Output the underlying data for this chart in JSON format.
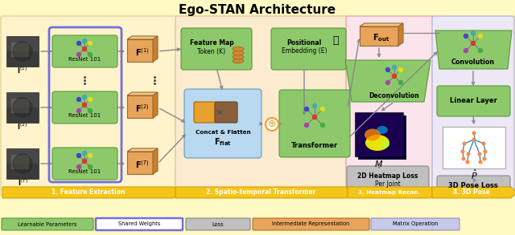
{
  "title": "Ego-STAN Architecture",
  "title_fontsize": 11,
  "title_fontweight": "bold",
  "outer_bg": "#FFF9C4",
  "sec_bg": {
    "feat": "#FFF3CC",
    "spatio": "#FDEBD0",
    "heat": "#FCE4EC",
    "pose": "#EDE7F6"
  },
  "green": "#8DC96B",
  "orange": "#E8A45A",
  "blue_box": "#B8D9F0",
  "gray_loss": "#C0C0C0",
  "lavender": "#C8C8E8",
  "yellow_banner": "#F5C518",
  "shared_border": "#7070DD",
  "arrow_col": "#888888",
  "sections": [
    "1. Feature Extraction",
    "2. Spatio-temporal Transformer",
    "3. Heatmap Recon.",
    "4. 3D Pose"
  ],
  "img_labels": [
    "I$^{(1)}$",
    "I$^{(2)}$",
    "I$^{(T)}$"
  ],
  "F_labels": [
    "F$^{(1)}$",
    "F$^{(2)}$",
    "F$^{(T)}$"
  ],
  "legend": [
    {
      "label": "Learnable Parameters",
      "fc": "#8DC96B",
      "ec": "#5A9A3A",
      "lw": 0.8
    },
    {
      "label": "Shared Weights",
      "fc": "#FFFFFF",
      "ec": "#7070DD",
      "lw": 1.8
    },
    {
      "label": "Loss",
      "fc": "#C0C0C0",
      "ec": "#888888",
      "lw": 0.8
    },
    {
      "label": "Intermediate Representation",
      "fc": "#E8A45A",
      "ec": "#B07030",
      "lw": 0.8
    },
    {
      "label": "Matrix Operation",
      "fc": "#C8C8E8",
      "ec": "#9090BB",
      "lw": 0.8
    }
  ]
}
